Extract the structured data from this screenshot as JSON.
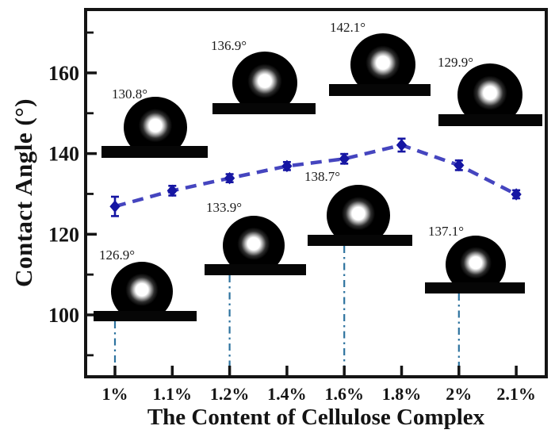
{
  "chart_data": {
    "type": "line",
    "title": "",
    "xlabel": "The Content of Cellulose Complex",
    "ylabel": "Contact Angle (°)",
    "categories": [
      "1%",
      "1.1%",
      "1.2%",
      "1.4%",
      "1.6%",
      "1.8%",
      "2%",
      "2.1%"
    ],
    "series": [
      {
        "name": "contact-angle",
        "values": [
          126.9,
          130.8,
          133.9,
          136.9,
          138.7,
          142.1,
          137.1,
          129.9
        ],
        "errors": [
          2.4,
          1.2,
          1.0,
          1.0,
          1.2,
          1.6,
          1.2,
          1.0
        ]
      }
    ],
    "yticks": [
      100,
      120,
      140,
      160
    ],
    "minor_yticks": [
      90,
      110,
      130,
      150,
      170
    ],
    "ylim": [
      84.7,
      175.7
    ],
    "grid": false,
    "legend_position": "none",
    "line_style": "dashed",
    "marker": "diamond",
    "colors": {
      "line": "#4545bf",
      "marker": "#1616a3",
      "connector": "#2e739f",
      "axis": "#141414",
      "text": "#141414"
    },
    "insets": [
      {
        "label": "126.9°",
        "category": "1%",
        "row": "bottom"
      },
      {
        "label": "130.8°",
        "category": "1.1%",
        "row": "top"
      },
      {
        "label": "133.9°",
        "category": "1.2%",
        "row": "bottom"
      },
      {
        "label": "136.9°",
        "category": "1.4%",
        "row": "top"
      },
      {
        "label": "138.7°",
        "category": "1.6%",
        "row": "bottom"
      },
      {
        "label": "142.1°",
        "category": "1.8%",
        "row": "top"
      },
      {
        "label": "137.1°",
        "category": "2%",
        "row": "bottom"
      },
      {
        "label": "129.9°",
        "category": "2.1%",
        "row": "top"
      }
    ],
    "connector_categories": [
      "1%",
      "1.2%",
      "1.6%",
      "2%"
    ]
  }
}
